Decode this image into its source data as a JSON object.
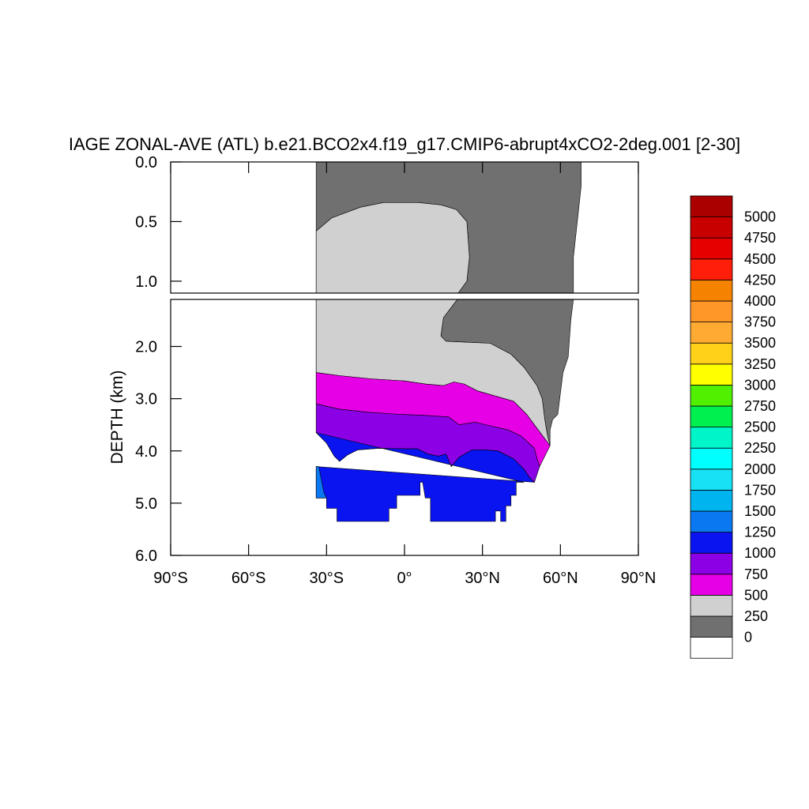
{
  "chart_data": {
    "type": "heatmap",
    "title": "IAGE ZONAL-AVE (ATL) b.e21.BCO2x4.f19_g17.CMIP6-abrupt4xCO2-2deg.001 [2-30]",
    "xlabel": "",
    "ylabel": "DEPTH (km)",
    "x_ticks": [
      "90°S",
      "60°S",
      "30°S",
      "0°",
      "30°N",
      "60°N",
      "90°N"
    ],
    "x_tick_values": [
      -90,
      -60,
      -30,
      0,
      30,
      60,
      90
    ],
    "xlim": [
      -90,
      90
    ],
    "upper_panel": {
      "ylim": [
        0,
        1.1
      ],
      "y_ticks": [
        "0.0",
        "0.5",
        "1.0"
      ],
      "y_tick_values": [
        0,
        0.5,
        1.0
      ]
    },
    "lower_panel": {
      "ylim": [
        1.1,
        6.0
      ],
      "y_ticks": [
        "2.0",
        "3.0",
        "4.0",
        "5.0",
        "6.0"
      ],
      "y_tick_values": [
        2,
        3,
        4,
        5,
        6
      ]
    },
    "colorbar": {
      "labels": [
        "0",
        "250",
        "500",
        "750",
        "1000",
        "1250",
        "1500",
        "1750",
        "2000",
        "2250",
        "2500",
        "2750",
        "3000",
        "3250",
        "3500",
        "3750",
        "4000",
        "4250",
        "4500",
        "4750",
        "5000"
      ],
      "colors": [
        "#ffffff",
        "#707070",
        "#d0d0d0",
        "#e600e6",
        "#8c00e6",
        "#0a14f0",
        "#0a78f0",
        "#00b4f0",
        "#19e1f5",
        "#00ffff",
        "#00f5c8",
        "#00f050",
        "#50f000",
        "#ffff00",
        "#ffd219",
        "#ffaa32",
        "#ff9628",
        "#f58200",
        "#ff1e0a",
        "#e60000",
        "#c80000",
        "#aa0000"
      ]
    },
    "bands": [
      {
        "level": "0-250",
        "color": "#707070",
        "upper_left": [
          [
            -34,
            0
          ],
          [
            -34,
            0.58
          ],
          [
            -28,
            0.47
          ],
          [
            -17,
            0.38
          ],
          [
            -8,
            0.34
          ],
          [
            5,
            0.34
          ],
          [
            14,
            0.36
          ],
          [
            20,
            0.4
          ],
          [
            24,
            0.5
          ],
          [
            25,
            0.8
          ],
          [
            24,
            1.0
          ],
          [
            20,
            1.12
          ],
          [
            15,
            1.45
          ],
          [
            14,
            1.8
          ],
          [
            16,
            1.9
          ],
          [
            24,
            1.92
          ],
          [
            33,
            1.94
          ],
          [
            41,
            2.15
          ],
          [
            46,
            2.4
          ],
          [
            51,
            2.75
          ],
          [
            53,
            3.0
          ],
          [
            54,
            3.4
          ],
          [
            55,
            3.7
          ],
          [
            56,
            3.9
          ]
        ],
        "edge": [
          [
            56,
            3.9
          ],
          [
            56,
            3.6
          ],
          [
            57,
            3.4
          ],
          [
            59,
            3.3
          ],
          [
            60,
            2.9
          ],
          [
            61,
            2.5
          ],
          [
            63,
            2.2
          ],
          [
            64,
            1.5
          ],
          [
            65,
            1.1
          ],
          [
            65,
            0.8
          ],
          [
            66,
            0.6
          ],
          [
            67,
            0.4
          ],
          [
            68,
            0.2
          ],
          [
            68,
            0
          ]
        ]
      },
      {
        "level": "250-500",
        "color": "#d0d0d0",
        "edge": [
          [
            -34,
            0.58
          ],
          [
            -34,
            0.9
          ],
          [
            -34,
            1.0
          ],
          [
            -34,
            1.5
          ],
          [
            -34,
            2.0
          ],
          [
            -34,
            2.3
          ],
          [
            -34,
            2.5
          ],
          [
            -25,
            2.56
          ],
          [
            -13,
            2.62
          ],
          [
            0,
            2.66
          ],
          [
            8,
            2.72
          ],
          [
            15,
            2.75
          ],
          [
            19,
            2.68
          ],
          [
            23,
            2.72
          ],
          [
            28,
            2.85
          ],
          [
            35,
            2.95
          ],
          [
            42,
            3.05
          ],
          [
            47,
            3.3
          ],
          [
            50,
            3.5
          ],
          [
            53,
            3.7
          ],
          [
            56,
            3.9
          ]
        ]
      },
      {
        "level": "500-750",
        "color": "#e600e6",
        "edge": [
          [
            -34,
            2.5
          ],
          [
            -34,
            3.1
          ],
          [
            -25,
            3.2
          ],
          [
            -14,
            3.26
          ],
          [
            -2,
            3.3
          ],
          [
            8,
            3.32
          ],
          [
            17,
            3.35
          ],
          [
            21,
            3.5
          ],
          [
            27,
            3.45
          ],
          [
            33,
            3.52
          ],
          [
            40,
            3.6
          ],
          [
            45,
            3.72
          ],
          [
            48,
            3.86
          ],
          [
            50,
            3.95
          ],
          [
            51,
            4.15
          ],
          [
            52,
            4.3
          ]
        ]
      },
      {
        "level": "750-1000",
        "color": "#8c00e6",
        "edge": [
          [
            -34,
            3.1
          ],
          [
            -34,
            3.65
          ],
          [
            -30,
            3.85
          ],
          [
            -27,
            4.1
          ],
          [
            -25,
            4.2
          ],
          [
            -22,
            4.08
          ],
          [
            -18,
            3.98
          ],
          [
            -10,
            3.95
          ],
          [
            0,
            3.96
          ],
          [
            5,
            3.96
          ],
          [
            9,
            4.06
          ],
          [
            13,
            4.1
          ],
          [
            16,
            4.06
          ],
          [
            18,
            4.3
          ],
          [
            21,
            4.12
          ],
          [
            26,
            3.98
          ],
          [
            31,
            3.98
          ],
          [
            36,
            4.0
          ],
          [
            42,
            4.15
          ],
          [
            46,
            4.35
          ],
          [
            48,
            4.5
          ],
          [
            50,
            4.6
          ]
        ]
      },
      {
        "level": "1000-1250",
        "color": "#0a14f0",
        "bottom": [
          [
            -34,
            3.65
          ],
          [
            -34,
            4.3
          ],
          [
            -34,
            4.9
          ],
          [
            -30,
            4.9
          ],
          [
            -30,
            5.1
          ],
          [
            -26,
            5.1
          ],
          [
            -26,
            5.35
          ],
          [
            -6,
            5.35
          ],
          [
            -6,
            5.1
          ],
          [
            -3,
            5.1
          ],
          [
            -3,
            4.85
          ],
          [
            6,
            4.85
          ],
          [
            6,
            4.6
          ],
          [
            7,
            4.6
          ],
          [
            8,
            4.9
          ],
          [
            10,
            4.9
          ],
          [
            10,
            5.35
          ],
          [
            35,
            5.35
          ],
          [
            35,
            5.15
          ],
          [
            37,
            5.15
          ],
          [
            37,
            5.35
          ],
          [
            39,
            5.35
          ],
          [
            39,
            5.05
          ],
          [
            41,
            5.05
          ],
          [
            41,
            4.85
          ],
          [
            43,
            4.85
          ],
          [
            43,
            4.6
          ],
          [
            46,
            4.6
          ],
          [
            46,
            4.6
          ]
        ]
      },
      {
        "level": "1250-1500",
        "color": "#0a78f0",
        "edge": [
          [
            -34,
            4.3
          ],
          [
            -33,
            4.3
          ],
          [
            -31,
            4.8
          ],
          [
            -30,
            4.9
          ],
          [
            -34,
            4.9
          ]
        ]
      }
    ],
    "grid": false,
    "legend": "colorbar-right"
  }
}
